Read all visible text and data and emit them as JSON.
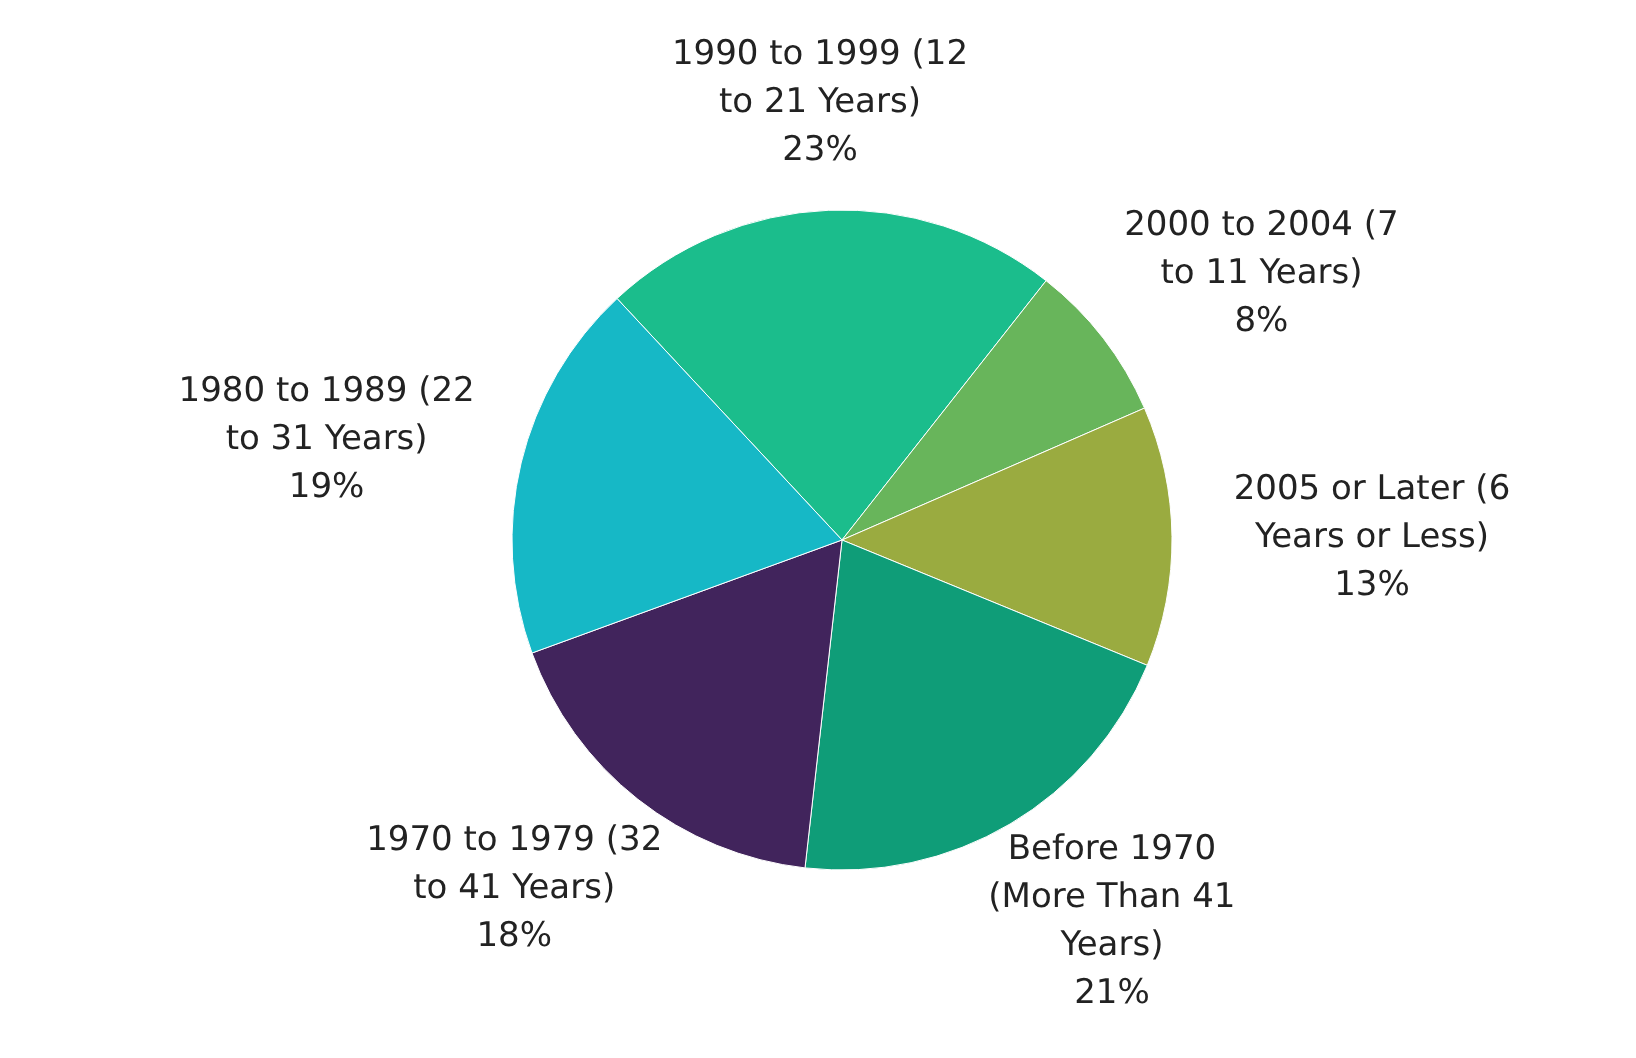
{
  "chart_data": {
    "type": "pie",
    "categories": [
      "1990 to 1999 (12 to 21 Years)",
      "2000 to 2004 (7 to 11 Years)",
      "2005 or Later (6 Years or Less)",
      "Before 1970 (More Than 41 Years)",
      "1970 to 1979 (32 to 41 Years)",
      "1980 to 1989 (22 to 31 Years)"
    ],
    "values": [
      23,
      8,
      13,
      21,
      18,
      19
    ],
    "value_labels": [
      "23%",
      "8%",
      "13%",
      "21%",
      "18%",
      "19%"
    ],
    "colors": [
      "#1bbd8c",
      "#68b55b",
      "#9aab40",
      "#0f9d78",
      "#41245c",
      "#16b8c6"
    ]
  }
}
